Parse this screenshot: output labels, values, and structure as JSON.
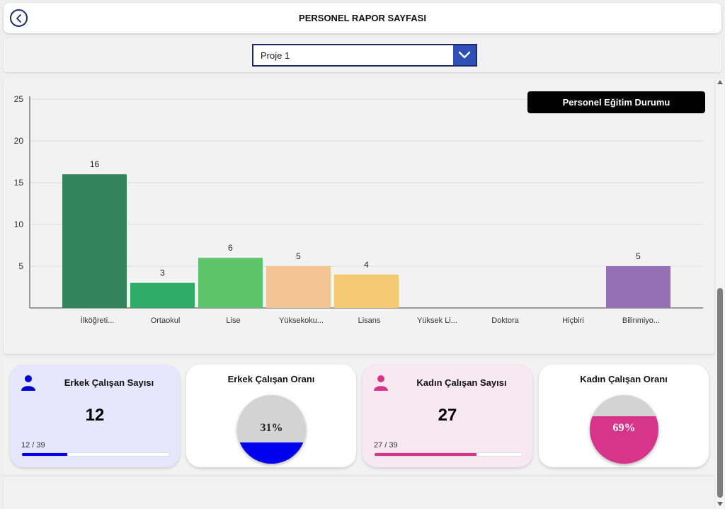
{
  "header": {
    "title": "PERSONEL RAPOR SAYFASI"
  },
  "filter": {
    "selected": "Proje 1"
  },
  "chart_title": "Personel Eğitim Durumu",
  "chart_data": {
    "type": "bar",
    "title": "Personel Eğitim Durumu",
    "categories": [
      "İlköğreti...",
      "Ortaokul",
      "Lise",
      "Yüksekoku...",
      "Lisans",
      "Yüksek Li...",
      "Doktora",
      "Hiçbiri",
      "Bilinmiyo..."
    ],
    "values": [
      16,
      3,
      6,
      5,
      4,
      0,
      0,
      0,
      5
    ],
    "value_labels": [
      "16",
      "3",
      "6",
      "5",
      "4",
      "",
      "",
      "",
      "5"
    ],
    "colors": [
      "#33845d",
      "#2fac68",
      "#5ec46c",
      "#f3c594",
      "#f5c971",
      "#cccccc",
      "#cccccc",
      "#cccccc",
      "#9570b5"
    ],
    "ylim": [
      0,
      25
    ],
    "yticks": [
      5,
      10,
      15,
      20,
      25
    ],
    "grid": true
  },
  "cards": {
    "male": {
      "title": "Erkek Çalışan Sayısı",
      "count": "12",
      "fraction": "12 / 39",
      "progress": 0.31,
      "color": "#0000ee"
    },
    "male_ratio": {
      "title": "Erkek Çalışan Oranı",
      "percent_label": "31%",
      "percent": 0.31,
      "color": "#0000ee"
    },
    "female": {
      "title": "Kadın Çalışan Sayısı",
      "count": "27",
      "fraction": "27 / 39",
      "progress": 0.69,
      "color": "#d6358a"
    },
    "female_ratio": {
      "title": "Kadın Çalışan Oranı",
      "percent_label": "69%",
      "percent": 0.69,
      "color": "#d6358a"
    }
  }
}
